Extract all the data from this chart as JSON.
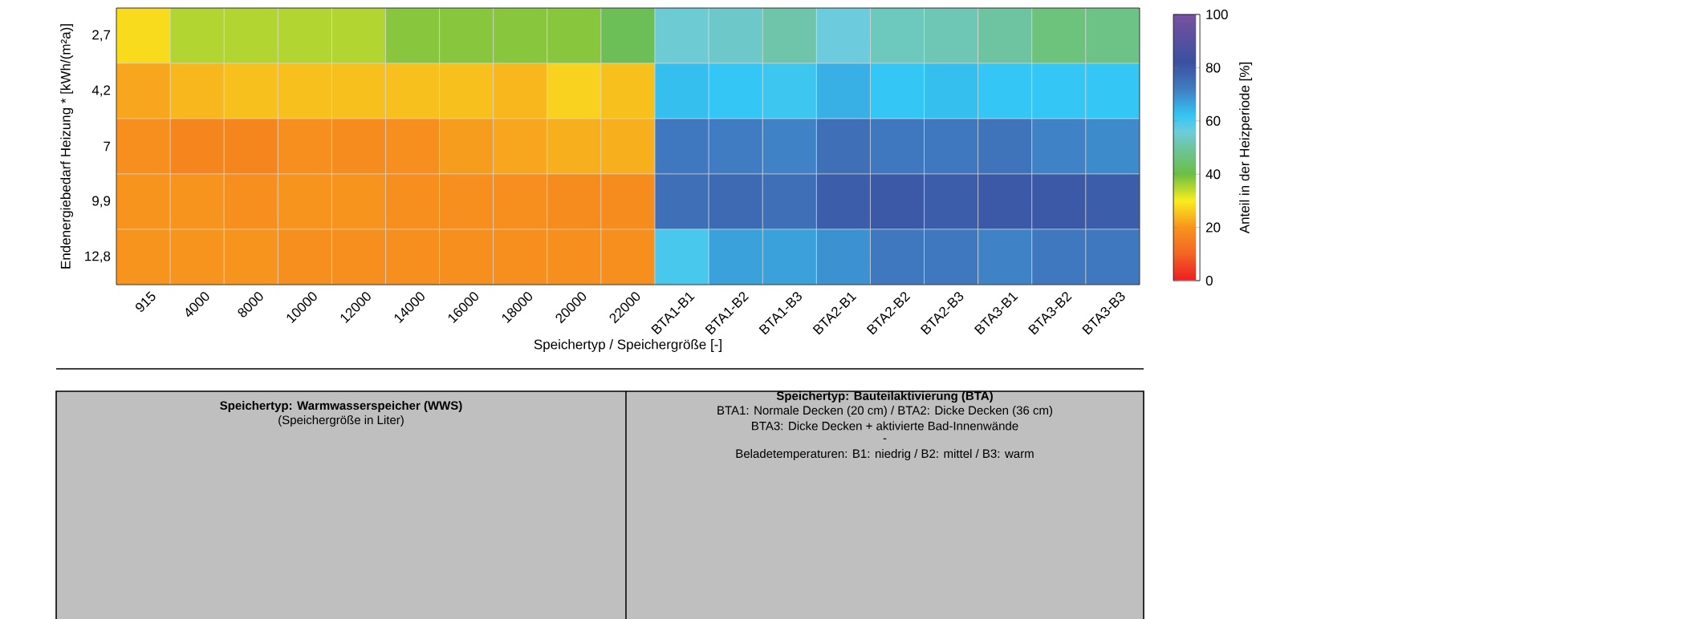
{
  "chart_data": {
    "type": "heatmap",
    "xlabel": "Speichertyp / Speichergröße [-]",
    "ylabel": "Endenergiebedarf Heizung * [kWh/(m²a)]",
    "clabel": "Anteil in der Heizperiode [%]",
    "categories": [
      "915",
      "4000",
      "8000",
      "10000",
      "12000",
      "14000",
      "16000",
      "18000",
      "20000",
      "22000",
      "BTA1-B1",
      "BTA1-B2",
      "BTA1-B3",
      "BTA2-B1",
      "BTA2-B2",
      "BTA2-B3",
      "BTA3-B1",
      "BTA3-B2",
      "BTA3-B3"
    ],
    "y_categories": [
      "2,7",
      "4,2",
      "7",
      "9,9",
      "12,8"
    ],
    "cells": [
      [
        28,
        35,
        35,
        35,
        35,
        38,
        38,
        38,
        38,
        42,
        55,
        54,
        51,
        56,
        53,
        52,
        50,
        46,
        47
      ],
      [
        22,
        24,
        25,
        25,
        25,
        25,
        25,
        24,
        27,
        25,
        63,
        62,
        61,
        65,
        62,
        63,
        62,
        62,
        62
      ],
      [
        19,
        17,
        17,
        19,
        18,
        19,
        21,
        22,
        23,
        23,
        73,
        72,
        71,
        75,
        73,
        73,
        74,
        71,
        70
      ],
      [
        20,
        20,
        19,
        20,
        20,
        19,
        19,
        19,
        18,
        18,
        75,
        76,
        75,
        79,
        80,
        79,
        80,
        80,
        79
      ],
      [
        20,
        20,
        20,
        19,
        19,
        19,
        19,
        19,
        19,
        19,
        60,
        67,
        67,
        69,
        73,
        73,
        71,
        73,
        73
      ]
    ],
    "clim": [
      0,
      100
    ],
    "cticks": [
      0,
      20,
      40,
      60,
      80,
      100
    ],
    "annotations": [
      "Speichertyp: Warmwasserspeicher (WWS)",
      "(Speichergröße in Liter)",
      "Speichertyp: Bauteilaktivierung (BTA)",
      "BTA1: Normale Decken (20 cm)  /  BTA2: Dicke Decken (36 cm)",
      "BTA3: Dicke Decken + aktivierte Bad-Innenwände",
      "-",
      "Beladetemperaturen:   B1: niedrig  /  B2: mittel  /  B3: warm"
    ]
  }
}
